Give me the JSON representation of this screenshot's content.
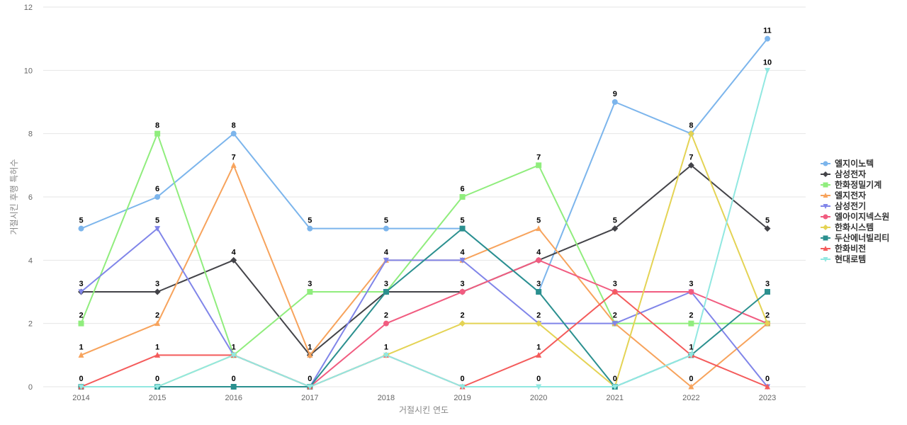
{
  "chart_data": {
    "type": "line",
    "xlabel": "거절시킨 연도",
    "ylabel": "거절시킨 후행 특허수",
    "ylim": [
      0,
      12
    ],
    "yticks": [
      0,
      2,
      4,
      6,
      8,
      10,
      12
    ],
    "grid": "horizontal",
    "legend_position": "right",
    "categories": [
      "2014",
      "2015",
      "2016",
      "2017",
      "2018",
      "2019",
      "2020",
      "2021",
      "2022",
      "2023"
    ],
    "series": [
      {
        "name": "엘지이노텍",
        "color": "#7cb5ec",
        "marker": "circle",
        "values": [
          5,
          6,
          8,
          5,
          5,
          5,
          3,
          9,
          8,
          11
        ]
      },
      {
        "name": "삼성전자",
        "color": "#434348",
        "marker": "diamond",
        "values": [
          3,
          3,
          4,
          1,
          3,
          3,
          4,
          5,
          7,
          5
        ]
      },
      {
        "name": "한화정밀기계",
        "color": "#90ed7d",
        "marker": "square",
        "values": [
          2,
          8,
          1,
          3,
          3,
          6,
          7,
          2,
          2,
          2
        ]
      },
      {
        "name": "엘지전자",
        "color": "#f7a35c",
        "marker": "triangle",
        "values": [
          1,
          2,
          7,
          1,
          4,
          4,
          5,
          2,
          0,
          2
        ]
      },
      {
        "name": "삼성전기",
        "color": "#8085e9",
        "marker": "triangle-down",
        "values": [
          3,
          5,
          1,
          0,
          4,
          4,
          2,
          2,
          3,
          0
        ]
      },
      {
        "name": "엘아이지넥스원",
        "color": "#f15c80",
        "marker": "circle",
        "values": [
          0,
          0,
          0,
          0,
          2,
          3,
          4,
          3,
          3,
          2
        ]
      },
      {
        "name": "한화시스템",
        "color": "#e4d354",
        "marker": "diamond",
        "values": [
          0,
          0,
          1,
          0,
          1,
          2,
          2,
          0,
          8,
          2
        ]
      },
      {
        "name": "두산에너빌리티",
        "color": "#2b908f",
        "marker": "square",
        "values": [
          0,
          0,
          0,
          0,
          3,
          5,
          3,
          0,
          1,
          3
        ]
      },
      {
        "name": "한화비전",
        "color": "#f45b5b",
        "marker": "triangle",
        "values": [
          0,
          1,
          1,
          0,
          1,
          0,
          1,
          3,
          1,
          0
        ]
      },
      {
        "name": "현대로템",
        "color": "#91e8e1",
        "marker": "triangle-down",
        "values": [
          0,
          0,
          1,
          0,
          1,
          0,
          0,
          0,
          1,
          10
        ]
      }
    ],
    "data_labels": [
      {
        "category": "2014",
        "labels": [
          "5",
          "3",
          "2",
          "1",
          "0"
        ]
      },
      {
        "category": "2015",
        "labels": [
          "6",
          "5",
          "3",
          "8",
          "2",
          "1",
          "0"
        ]
      },
      {
        "category": "2016",
        "labels": [
          "8",
          "7",
          "4",
          "1",
          "0"
        ]
      },
      {
        "category": "2017",
        "labels": [
          "5",
          "3",
          "1",
          "0"
        ]
      },
      {
        "category": "2018",
        "labels": [
          "5",
          "4",
          "3",
          "2",
          "1"
        ]
      },
      {
        "category": "2019",
        "labels": [
          "5",
          "6",
          "4",
          "3",
          "2",
          "0"
        ]
      },
      {
        "category": "2020",
        "labels": [
          "7",
          "5",
          "4",
          "3",
          "2",
          "1",
          "0"
        ]
      },
      {
        "category": "2021",
        "labels": [
          "9",
          "5",
          "3",
          "2",
          "0"
        ]
      },
      {
        "category": "2022",
        "labels": [
          "8",
          "7",
          "3",
          "2",
          "1",
          "0"
        ]
      },
      {
        "category": "2023",
        "labels": [
          "11",
          "10",
          "5",
          "3",
          "2",
          "0"
        ]
      }
    ]
  }
}
